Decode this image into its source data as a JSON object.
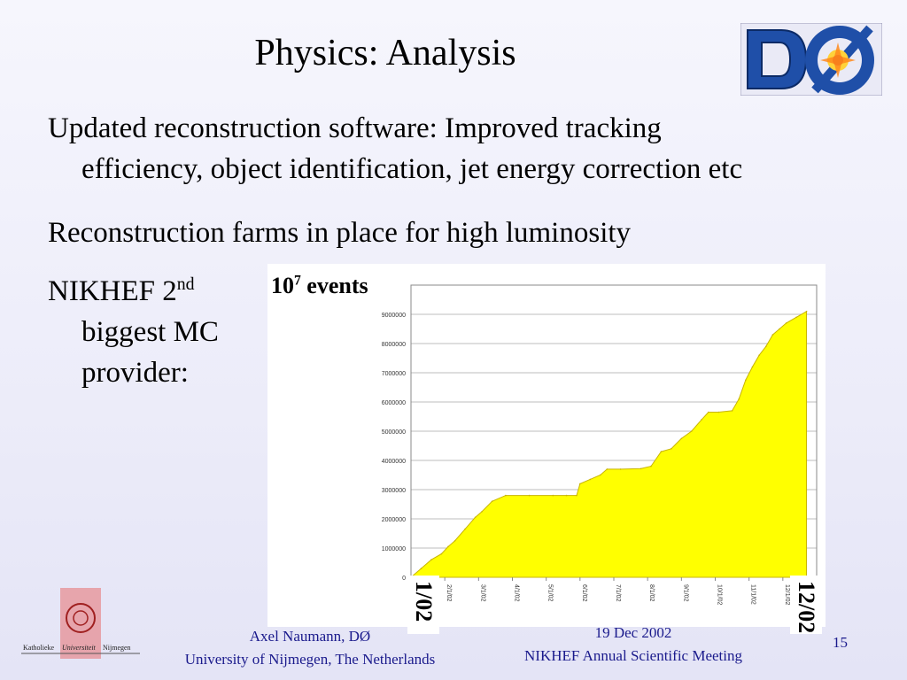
{
  "slide": {
    "title": "Physics: Analysis",
    "bullets": [
      {
        "line1": "Updated reconstruction software: Improved tracking",
        "line2": "efficiency, object identification, jet energy correction etc"
      },
      {
        "line1": "Reconstruction farms in place for high luminosity"
      },
      {
        "line1_main": "NIKHEF 2",
        "line1_sup": "nd",
        "line2": "biggest MC",
        "line3": "provider:"
      }
    ],
    "logo_text": "DØ",
    "chart_label_main": "10",
    "chart_label_sup": "7",
    "chart_label_rest": " events",
    "axis_start": "1/02",
    "axis_end": "12/02",
    "university_logo_text": [
      "Katholieke",
      "Universiteit",
      "Nijmegen"
    ],
    "footer_left": [
      "Axel Naumann, DØ",
      "University of Nijmegen, The Netherlands"
    ],
    "footer_right": [
      "19 Dec 2002",
      "NIKHEF Annual Scientific Meeting"
    ],
    "page_number": "15",
    "colors": {
      "fill": "#ffff00",
      "footer": "#1a1a8c",
      "logo_blue": "#1f4fa8"
    }
  },
  "chart_data": {
    "type": "area",
    "ylim": [
      0,
      10000000
    ],
    "yticks": [
      "0",
      "1000000",
      "2000000",
      "3000000",
      "4000000",
      "5000000",
      "6000000",
      "7000000",
      "8000000",
      "9000000"
    ],
    "xticks": [
      "1/1/02",
      "2/1/02",
      "3/1/02",
      "4/1/02",
      "5/1/02",
      "6/1/02",
      "7/1/02",
      "8/1/02",
      "9/1/02",
      "10/1/02",
      "11/1/02",
      "12/1/02"
    ],
    "grid": true,
    "x": [
      0,
      0.3,
      0.6,
      0.9,
      1.1,
      1.3,
      1.6,
      1.9,
      2.1,
      2.4,
      2.8,
      3.5,
      4.2,
      4.6,
      4.9,
      5.0,
      5.3,
      5.6,
      5.8,
      6.2,
      6.8,
      7.1,
      7.4,
      7.7,
      8.0,
      8.3,
      8.6,
      8.8,
      9.1,
      9.5,
      9.7,
      9.9,
      10.1,
      10.3,
      10.5,
      10.7,
      10.9,
      11.1,
      11.4,
      11.7
    ],
    "y": [
      0,
      300000,
      600000,
      800000,
      1050000,
      1250000,
      1650000,
      2050000,
      2250000,
      2600000,
      2800000,
      2800000,
      2800000,
      2800000,
      2800000,
      3200000,
      3350000,
      3500000,
      3700000,
      3700000,
      3720000,
      3800000,
      4300000,
      4400000,
      4750000,
      5000000,
      5400000,
      5650000,
      5650000,
      5700000,
      6100000,
      6750000,
      7200000,
      7600000,
      7900000,
      8300000,
      8500000,
      8700000,
      8900000,
      9100000
    ]
  }
}
